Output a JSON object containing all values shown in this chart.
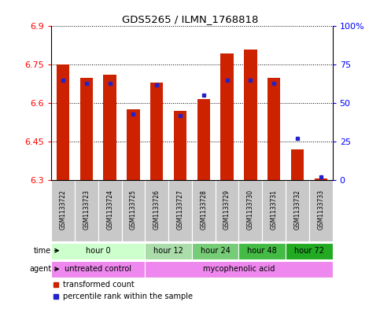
{
  "title": "GDS5265 / ILMN_1768818",
  "samples": [
    "GSM1133722",
    "GSM1133723",
    "GSM1133724",
    "GSM1133725",
    "GSM1133726",
    "GSM1133727",
    "GSM1133728",
    "GSM1133729",
    "GSM1133730",
    "GSM1133731",
    "GSM1133732",
    "GSM1133733"
  ],
  "red_values": [
    6.75,
    6.7,
    6.71,
    6.575,
    6.68,
    6.57,
    6.615,
    6.795,
    6.81,
    6.7,
    6.42,
    6.305
  ],
  "blue_values": [
    65,
    63,
    63,
    43,
    62,
    42,
    55,
    65,
    65,
    63,
    27,
    2
  ],
  "baseline": 6.3,
  "ylim_left": [
    6.3,
    6.9
  ],
  "ylim_right": [
    0,
    100
  ],
  "yticks_left": [
    6.3,
    6.45,
    6.6,
    6.75,
    6.9
  ],
  "yticks_right": [
    0,
    25,
    50,
    75,
    100
  ],
  "ytick_labels_left": [
    "6.3",
    "6.45",
    "6.6",
    "6.75",
    "6.9"
  ],
  "ytick_labels_right": [
    "0",
    "25",
    "50",
    "75",
    "100%"
  ],
  "bar_color": "#cc2200",
  "dot_color": "#2222cc",
  "background_sample": "#c8c8c8",
  "time_groups": [
    {
      "label": "hour 0",
      "start": 0,
      "end": 3,
      "color": "#ccffcc"
    },
    {
      "label": "hour 12",
      "start": 4,
      "end": 5,
      "color": "#aaddaa"
    },
    {
      "label": "hour 24",
      "start": 6,
      "end": 7,
      "color": "#77cc77"
    },
    {
      "label": "hour 48",
      "start": 8,
      "end": 9,
      "color": "#44bb44"
    },
    {
      "label": "hour 72",
      "start": 10,
      "end": 11,
      "color": "#22aa22"
    }
  ],
  "agent_groups": [
    {
      "label": "untreated control",
      "start": 0,
      "end": 3,
      "color": "#ee88ee"
    },
    {
      "label": "mycophenolic acid",
      "start": 4,
      "end": 11,
      "color": "#ee88ee"
    }
  ]
}
